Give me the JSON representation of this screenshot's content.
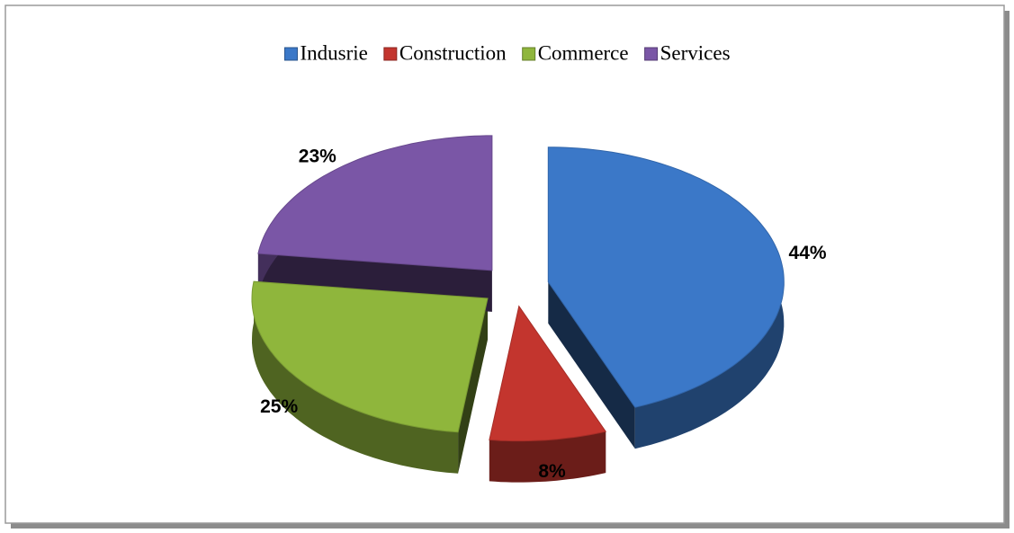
{
  "chart_data": {
    "type": "pie",
    "categories": [
      "Indusrie",
      "Construction",
      "Commerce",
      "Services"
    ],
    "values": [
      44,
      8,
      25,
      23
    ],
    "value_labels": [
      "44%",
      "8%",
      "25%",
      "23%"
    ],
    "colors": [
      "#3b78c8",
      "#c3352e",
      "#8fb63c",
      "#7a56a6"
    ],
    "legend": "top"
  }
}
